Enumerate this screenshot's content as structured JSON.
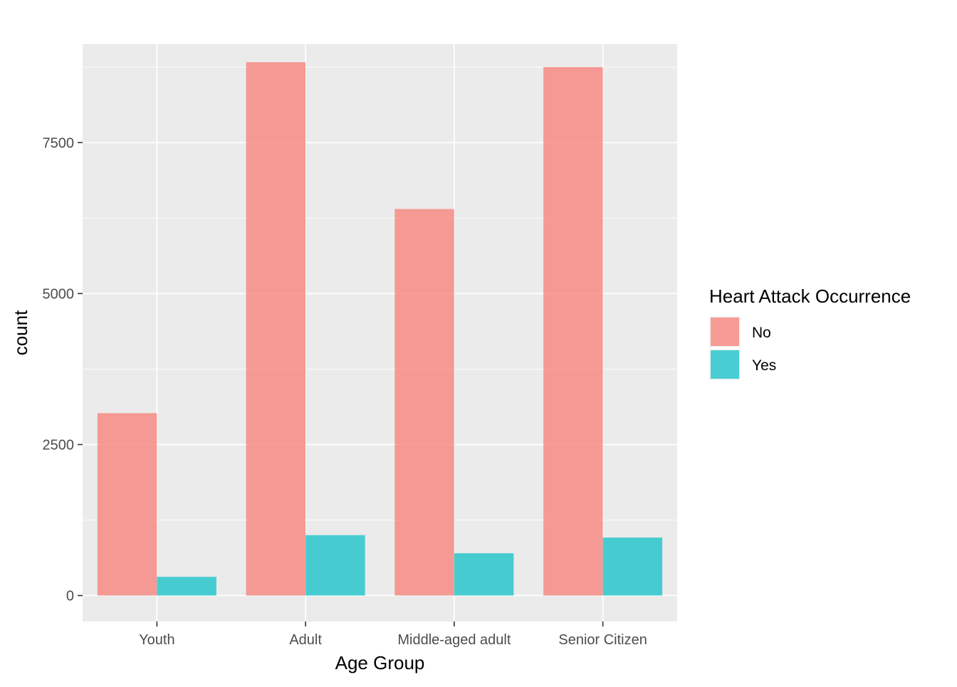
{
  "chart_data": {
    "type": "bar",
    "title": "",
    "xlabel": "Age Group",
    "ylabel": "count",
    "categories": [
      "Youth",
      "Adult",
      "Middle-aged adult",
      "Senior Citizen"
    ],
    "series": [
      {
        "name": "No",
        "values": [
          3020,
          8830,
          6400,
          8750
        ],
        "color": "#F8766D"
      },
      {
        "name": "Yes",
        "values": [
          310,
          1000,
          700,
          960
        ],
        "color": "#00BFC4"
      }
    ],
    "ylim": [
      -430,
      9130
    ],
    "yticks": [
      0,
      2500,
      5000,
      7500
    ],
    "yticklabels": [
      "0",
      "2500",
      "5000",
      "7500"
    ],
    "grid": true,
    "legend": {
      "title": "Heart Attack Occurrence",
      "position": "right"
    },
    "panel_color": "#EBEBEB",
    "bar_opacity": 0.7
  }
}
